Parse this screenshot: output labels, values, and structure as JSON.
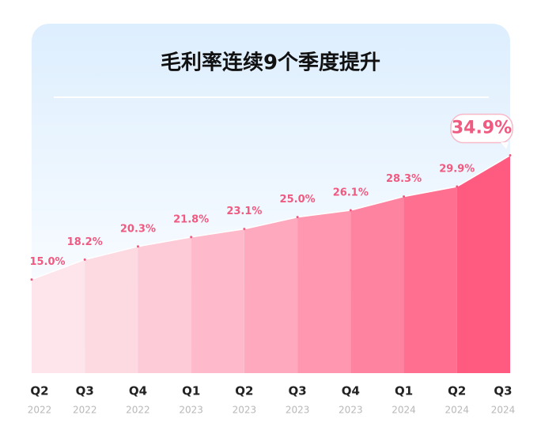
{
  "chart_data": {
    "type": "area",
    "title": "毛利率连续9个季度提升",
    "categories": [
      {
        "quarter": "Q2",
        "year": "2022"
      },
      {
        "quarter": "Q3",
        "year": "2022"
      },
      {
        "quarter": "Q4",
        "year": "2022"
      },
      {
        "quarter": "Q1",
        "year": "2023"
      },
      {
        "quarter": "Q2",
        "year": "2023"
      },
      {
        "quarter": "Q3",
        "year": "2023"
      },
      {
        "quarter": "Q4",
        "year": "2023"
      },
      {
        "quarter": "Q1",
        "year": "2024"
      },
      {
        "quarter": "Q2",
        "year": "2024"
      },
      {
        "quarter": "Q3",
        "year": "2024"
      }
    ],
    "values": [
      15.0,
      18.2,
      20.3,
      21.8,
      23.1,
      25.0,
      26.1,
      28.3,
      29.9,
      34.9
    ],
    "value_labels": [
      "15.0%",
      "18.2%",
      "20.3%",
      "21.8%",
      "23.1%",
      "25.0%",
      "26.1%",
      "28.3%",
      "29.9%",
      "34.9%"
    ],
    "ylim": [
      0,
      56
    ],
    "color_from": "#fdeef2",
    "color_to": "#ff5a80",
    "label_color": "#ef5a80"
  }
}
